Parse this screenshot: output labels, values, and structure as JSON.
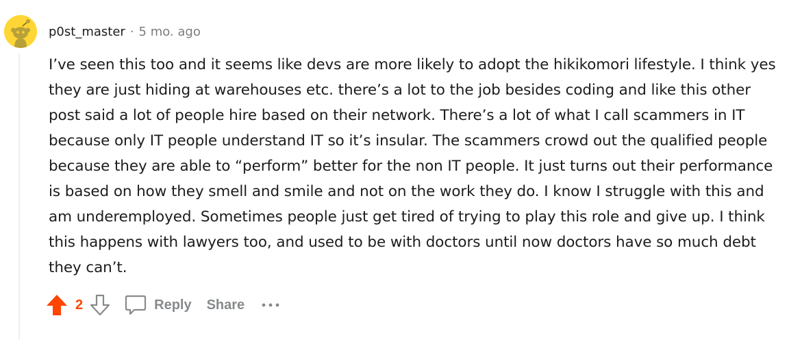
{
  "comment": {
    "author": "p0st_master",
    "separator": "·",
    "time_ago": "5 mo. ago",
    "body": "I’ve seen this too and it seems like devs are more likely to adopt the hikikomori lifestyle. I think yes they are just hiding at warehouses etc. there’s a lot to the job besides coding and like this other post said a lot of people hire based on their network. There’s a lot of what I call scammers in IT because only IT people understand IT so it’s insular. The scammers crowd out the qualified people because they are able to “perform” better for the non IT people. It just turns out their performance is based on how they smell and smile and not on the work they do. I know I struggle with this and am underemployed. Sometimes people just get tired of trying to play this role and give up. I think this happens with lawyers too, and used to be with doctors until now doctors have so much debt they can’t.",
    "vote_count": "2",
    "upvoted": true
  },
  "actions": {
    "reply_label": "Reply",
    "share_label": "Share"
  },
  "icons": {
    "avatar": "snoo-avatar-icon",
    "upvote": "upvote-arrow-icon",
    "downvote": "downvote-arrow-icon",
    "reply": "speech-bubble-icon",
    "more": "ellipsis-icon"
  },
  "colors": {
    "upvote_active": "#ff4500",
    "muted_text": "#7c7c7c",
    "action_gray": "#878a8c",
    "avatar_bg": "#ffd635",
    "thread_line": "#edeff1",
    "body_text": "#1c1c1c"
  }
}
